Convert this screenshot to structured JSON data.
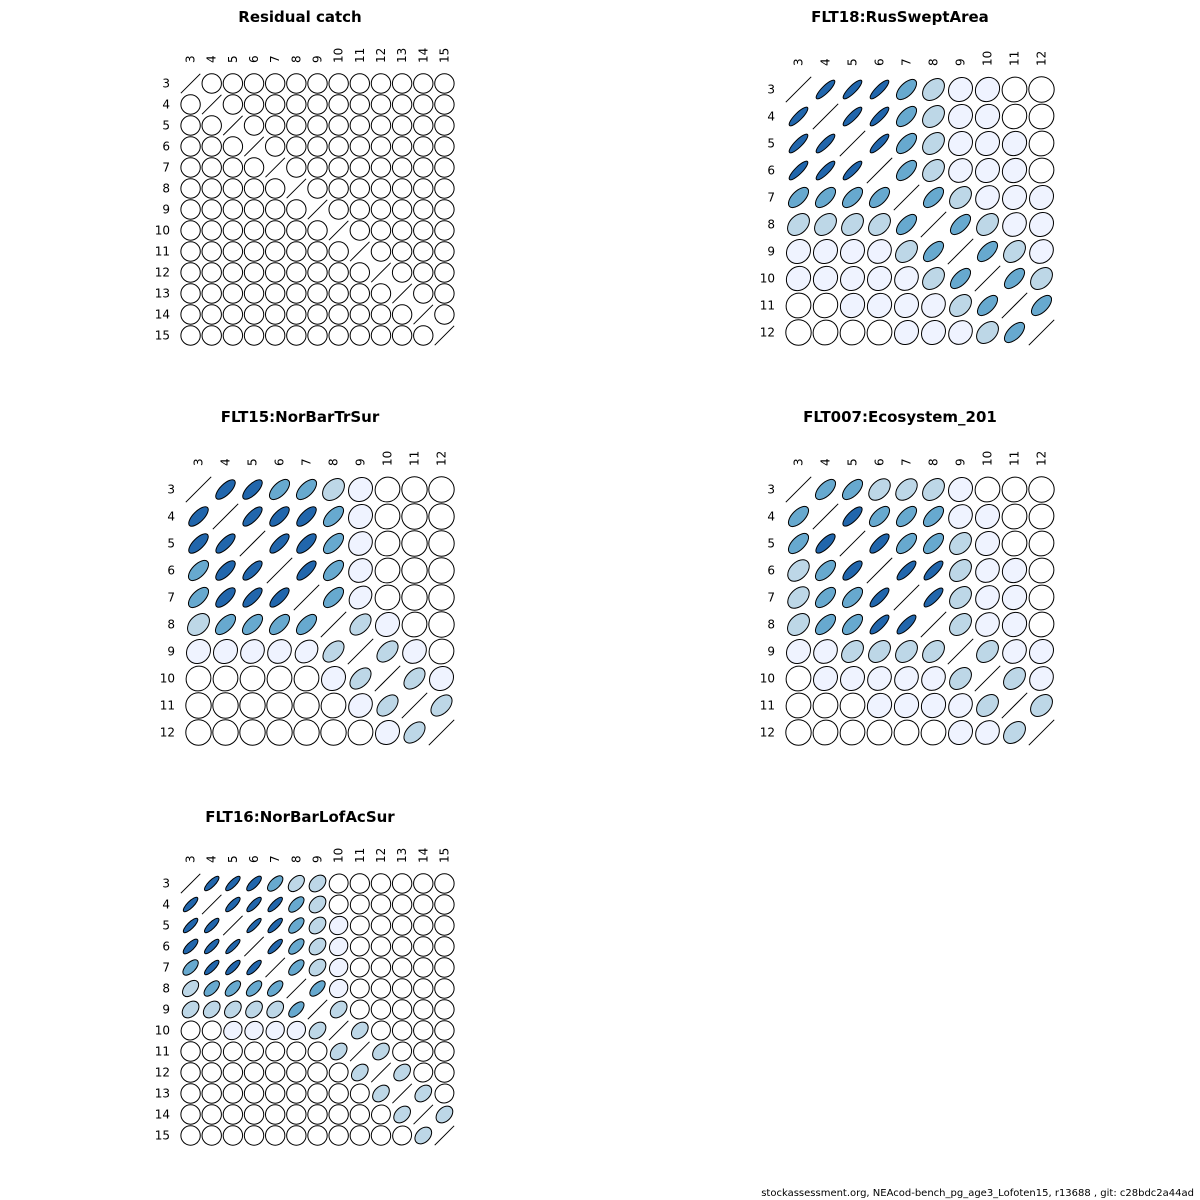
{
  "footer": "stockassessment.org, NEAcod-bench_pg_age3_Lofoten15, r13688 , git: c28bdc2a44ad",
  "colors": {
    "strong": "#2166ac",
    "mid": "#67a9cf",
    "light": "#bdd7e7",
    "faint": "#eff3ff",
    "none": "#ffffff",
    "outline": "#000000"
  },
  "chart_data": [
    {
      "type": "heatmap",
      "title": "Residual catch",
      "labels": [
        "3",
        "4",
        "5",
        "6",
        "7",
        "8",
        "9",
        "10",
        "11",
        "12",
        "13",
        "14",
        "15"
      ],
      "matrix": [
        [
          1,
          0,
          0,
          0,
          0,
          0,
          0,
          0,
          0,
          0,
          0,
          0,
          0
        ],
        [
          0,
          1,
          0,
          0,
          0,
          0,
          0,
          0,
          0,
          0,
          0,
          0,
          0
        ],
        [
          0,
          0,
          1,
          0,
          0,
          0,
          0,
          0,
          0,
          0,
          0,
          0,
          0
        ],
        [
          0,
          0,
          0,
          1,
          0,
          0,
          0,
          0,
          0,
          0,
          0,
          0,
          0
        ],
        [
          0,
          0,
          0,
          0,
          1,
          0,
          0,
          0,
          0,
          0,
          0,
          0,
          0
        ],
        [
          0,
          0,
          0,
          0,
          0,
          1,
          0,
          0,
          0,
          0,
          0,
          0,
          0
        ],
        [
          0,
          0,
          0,
          0,
          0,
          0,
          1,
          0,
          0,
          0,
          0,
          0,
          0
        ],
        [
          0,
          0,
          0,
          0,
          0,
          0,
          0,
          1,
          0,
          0,
          0,
          0,
          0
        ],
        [
          0,
          0,
          0,
          0,
          0,
          0,
          0,
          0,
          1,
          0,
          0,
          0,
          0
        ],
        [
          0,
          0,
          0,
          0,
          0,
          0,
          0,
          0,
          0,
          1,
          0,
          0,
          0
        ],
        [
          0,
          0,
          0,
          0,
          0,
          0,
          0,
          0,
          0,
          0,
          1,
          0,
          0
        ],
        [
          0,
          0,
          0,
          0,
          0,
          0,
          0,
          0,
          0,
          0,
          0,
          1,
          0
        ],
        [
          0,
          0,
          0,
          0,
          0,
          0,
          0,
          0,
          0,
          0,
          0,
          0,
          1
        ]
      ]
    },
    {
      "type": "heatmap",
      "title": "FLT18:RusSweptArea",
      "labels": [
        "3",
        "4",
        "5",
        "6",
        "7",
        "8",
        "9",
        "10",
        "11",
        "12"
      ],
      "matrix": [
        [
          1,
          0.85,
          0.85,
          0.85,
          0.6,
          0.35,
          0.12,
          0.1,
          0.05,
          0
        ],
        [
          0.85,
          1,
          0.85,
          0.85,
          0.6,
          0.35,
          0.12,
          0.1,
          0.08,
          0.05
        ],
        [
          0.85,
          0.85,
          1,
          0.85,
          0.6,
          0.35,
          0.12,
          0.12,
          0.1,
          0.05
        ],
        [
          0.85,
          0.85,
          0.85,
          1,
          0.6,
          0.35,
          0.15,
          0.12,
          0.1,
          0.05
        ],
        [
          0.6,
          0.6,
          0.6,
          0.6,
          1,
          0.6,
          0.35,
          0.15,
          0.12,
          0.12
        ],
        [
          0.35,
          0.35,
          0.35,
          0.35,
          0.6,
          1,
          0.6,
          0.35,
          0.15,
          0.12
        ],
        [
          0.12,
          0.12,
          0.12,
          0.15,
          0.35,
          0.6,
          1,
          0.6,
          0.35,
          0.15
        ],
        [
          0.1,
          0.1,
          0.12,
          0.12,
          0.15,
          0.35,
          0.6,
          1,
          0.6,
          0.35
        ],
        [
          0.05,
          0.08,
          0.1,
          0.1,
          0.12,
          0.15,
          0.35,
          0.6,
          1,
          0.6
        ],
        [
          0,
          0.05,
          0.05,
          0.05,
          0.12,
          0.12,
          0.15,
          0.35,
          0.6,
          1
        ]
      ]
    },
    {
      "type": "heatmap",
      "title": "FLT15:NorBarTrSur",
      "labels": [
        "3",
        "4",
        "5",
        "6",
        "7",
        "8",
        "9",
        "10",
        "11",
        "12"
      ],
      "matrix": [
        [
          1,
          0.7,
          0.7,
          0.6,
          0.6,
          0.35,
          0.12,
          0.05,
          0,
          0
        ],
        [
          0.7,
          1,
          0.75,
          0.7,
          0.7,
          0.6,
          0.12,
          0.05,
          0,
          0
        ],
        [
          0.7,
          0.75,
          1,
          0.75,
          0.7,
          0.6,
          0.15,
          0.05,
          0,
          0
        ],
        [
          0.6,
          0.7,
          0.75,
          1,
          0.75,
          0.6,
          0.15,
          0.05,
          0,
          0
        ],
        [
          0.6,
          0.7,
          0.75,
          0.75,
          1,
          0.6,
          0.25,
          0.05,
          0,
          0
        ],
        [
          0.35,
          0.6,
          0.6,
          0.6,
          0.6,
          1,
          0.45,
          0.12,
          0.05,
          0
        ],
        [
          0.12,
          0.12,
          0.15,
          0.15,
          0.25,
          0.45,
          1,
          0.45,
          0.15,
          0.05
        ],
        [
          0.05,
          0.05,
          0.05,
          0.05,
          0.05,
          0.12,
          0.45,
          1,
          0.45,
          0.12
        ],
        [
          0,
          0,
          0,
          0,
          0,
          0.05,
          0.15,
          0.45,
          1,
          0.45
        ],
        [
          0,
          0,
          0,
          0,
          0,
          0,
          0.05,
          0.12,
          0.45,
          1
        ]
      ]
    },
    {
      "type": "heatmap",
      "title": "FLT007:Ecosystem_201",
      "labels": [
        "3",
        "4",
        "5",
        "6",
        "7",
        "8",
        "9",
        "10",
        "11",
        "12"
      ],
      "matrix": [
        [
          1,
          0.6,
          0.6,
          0.4,
          0.4,
          0.35,
          0.12,
          0.05,
          0.05,
          0
        ],
        [
          0.6,
          1,
          0.75,
          0.6,
          0.6,
          0.6,
          0.15,
          0.12,
          0.05,
          0.05
        ],
        [
          0.6,
          0.75,
          1,
          0.75,
          0.6,
          0.6,
          0.35,
          0.12,
          0.05,
          0.05
        ],
        [
          0.4,
          0.6,
          0.75,
          1,
          0.8,
          0.8,
          0.35,
          0.15,
          0.1,
          0.05
        ],
        [
          0.4,
          0.6,
          0.6,
          0.8,
          1,
          0.8,
          0.35,
          0.15,
          0.1,
          0.05
        ],
        [
          0.35,
          0.6,
          0.6,
          0.8,
          0.8,
          1,
          0.35,
          0.15,
          0.1,
          0.05
        ],
        [
          0.12,
          0.15,
          0.35,
          0.35,
          0.35,
          0.35,
          1,
          0.35,
          0.15,
          0.12
        ],
        [
          0.05,
          0.12,
          0.12,
          0.15,
          0.15,
          0.15,
          0.35,
          1,
          0.35,
          0.15
        ],
        [
          0.05,
          0.05,
          0.05,
          0.1,
          0.1,
          0.1,
          0.15,
          0.35,
          1,
          0.35
        ],
        [
          0,
          0.05,
          0.05,
          0.05,
          0.05,
          0.05,
          0.12,
          0.15,
          0.35,
          1
        ]
      ]
    },
    {
      "type": "heatmap",
      "title": "FLT16:NorBarLofAcSur",
      "labels": [
        "3",
        "4",
        "5",
        "6",
        "7",
        "8",
        "9",
        "10",
        "11",
        "12",
        "13",
        "14",
        "15"
      ],
      "matrix": [
        [
          1,
          0.8,
          0.8,
          0.75,
          0.6,
          0.45,
          0.35,
          0.05,
          0,
          0,
          0,
          0,
          0
        ],
        [
          0.8,
          1,
          0.8,
          0.8,
          0.8,
          0.6,
          0.35,
          0.05,
          0.05,
          0,
          0,
          0,
          0
        ],
        [
          0.8,
          0.8,
          1,
          0.85,
          0.8,
          0.6,
          0.35,
          0.12,
          0.05,
          0,
          0,
          0,
          0
        ],
        [
          0.75,
          0.8,
          0.85,
          1,
          0.8,
          0.6,
          0.35,
          0.12,
          0.05,
          0,
          0,
          0,
          0
        ],
        [
          0.6,
          0.8,
          0.8,
          0.8,
          1,
          0.6,
          0.35,
          0.12,
          0.05,
          0,
          0,
          0,
          0
        ],
        [
          0.45,
          0.6,
          0.6,
          0.6,
          0.6,
          1,
          0.6,
          0.12,
          0.05,
          0,
          0,
          0,
          0
        ],
        [
          0.35,
          0.35,
          0.35,
          0.35,
          0.35,
          0.6,
          1,
          0.35,
          0.05,
          0,
          0,
          0,
          0
        ],
        [
          0.05,
          0.05,
          0.12,
          0.12,
          0.12,
          0.12,
          0.35,
          1,
          0.35,
          0.05,
          0,
          0,
          0
        ],
        [
          0,
          0.05,
          0.05,
          0.05,
          0.05,
          0.05,
          0.05,
          0.35,
          1,
          0.35,
          0.05,
          0,
          0
        ],
        [
          0,
          0,
          0,
          0,
          0,
          0,
          0,
          0.05,
          0.35,
          1,
          0.35,
          0.05,
          0
        ],
        [
          0,
          0,
          0,
          0,
          0,
          0,
          0,
          0,
          0.05,
          0.35,
          1,
          0.35,
          0.05
        ],
        [
          0,
          0,
          0,
          0,
          0,
          0,
          0,
          0,
          0,
          0.05,
          0.35,
          1,
          0.35
        ],
        [
          0,
          0,
          0,
          0,
          0,
          0,
          0,
          0,
          0,
          0,
          0.05,
          0.35,
          1
        ]
      ]
    }
  ]
}
